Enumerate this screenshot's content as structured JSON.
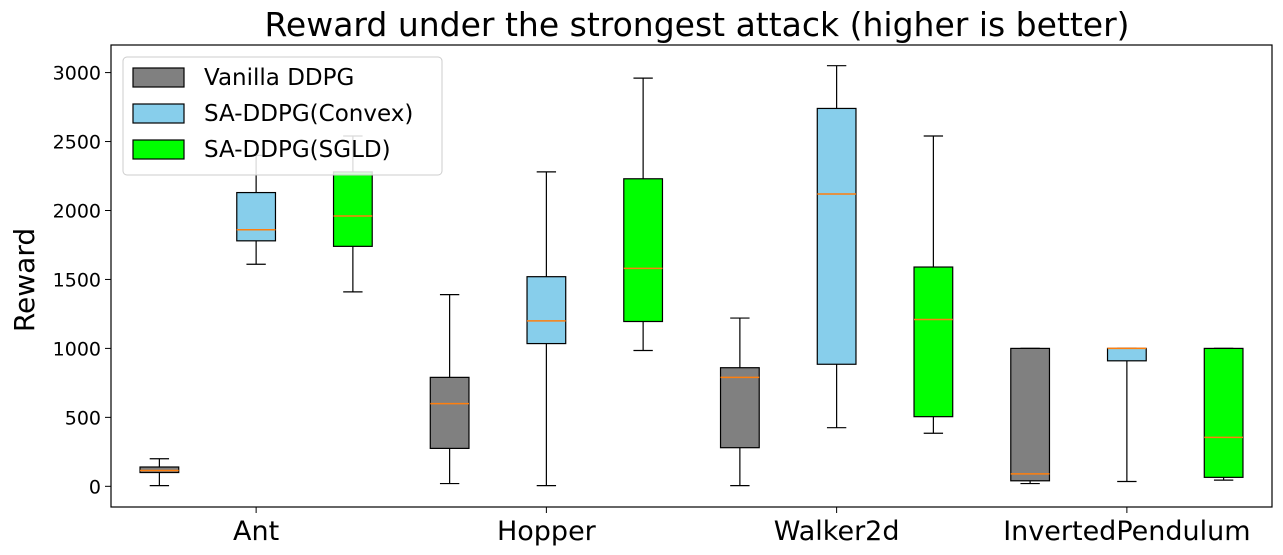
{
  "chart_data": {
    "type": "box",
    "title": "Reward under the strongest attack (higher is better)",
    "xlabel": "",
    "ylabel": "Reward",
    "ylim": [
      -150,
      3200
    ],
    "yticks": [
      0,
      500,
      1000,
      1500,
      2000,
      2500,
      3000
    ],
    "grid": false,
    "legend_position": "top-left",
    "categories": [
      "Ant",
      "Hopper",
      "Walker2d",
      "InvertedPendulum"
    ],
    "series": [
      {
        "name": "Vanilla DDPG",
        "color": "#808080",
        "boxes": [
          {
            "whislo": 5,
            "q1": 100,
            "med": 115,
            "q3": 140,
            "whishi": 200
          },
          {
            "whislo": 20,
            "q1": 275,
            "med": 600,
            "q3": 790,
            "whishi": 1390
          },
          {
            "whislo": 5,
            "q1": 280,
            "med": 790,
            "q3": 860,
            "whishi": 1220
          },
          {
            "whislo": 20,
            "q1": 40,
            "med": 90,
            "q3": 1000,
            "whishi": 1000
          }
        ]
      },
      {
        "name": "SA-DDPG(Convex)",
        "color": "#87ceeb",
        "boxes": [
          {
            "whislo": 1610,
            "q1": 1780,
            "med": 1860,
            "q3": 2130,
            "whishi": 2400
          },
          {
            "whislo": 5,
            "q1": 1035,
            "med": 1200,
            "q3": 1520,
            "whishi": 2280
          },
          {
            "whislo": 425,
            "q1": 885,
            "med": 2120,
            "q3": 2740,
            "whishi": 3050
          },
          {
            "whislo": 35,
            "q1": 910,
            "med": 1000,
            "q3": 1000,
            "whishi": 1000
          }
        ]
      },
      {
        "name": "SA-DDPG(SGLD)",
        "color": "#00ff00",
        "boxes": [
          {
            "whislo": 1410,
            "q1": 1740,
            "med": 1960,
            "q3": 2280,
            "whishi": 2540
          },
          {
            "whislo": 985,
            "q1": 1195,
            "med": 1580,
            "q3": 2230,
            "whishi": 2960
          },
          {
            "whislo": 385,
            "q1": 505,
            "med": 1210,
            "q3": 1590,
            "whishi": 2540
          },
          {
            "whislo": 45,
            "q1": 65,
            "med": 355,
            "q3": 1000,
            "whishi": 1000
          }
        ]
      }
    ]
  }
}
